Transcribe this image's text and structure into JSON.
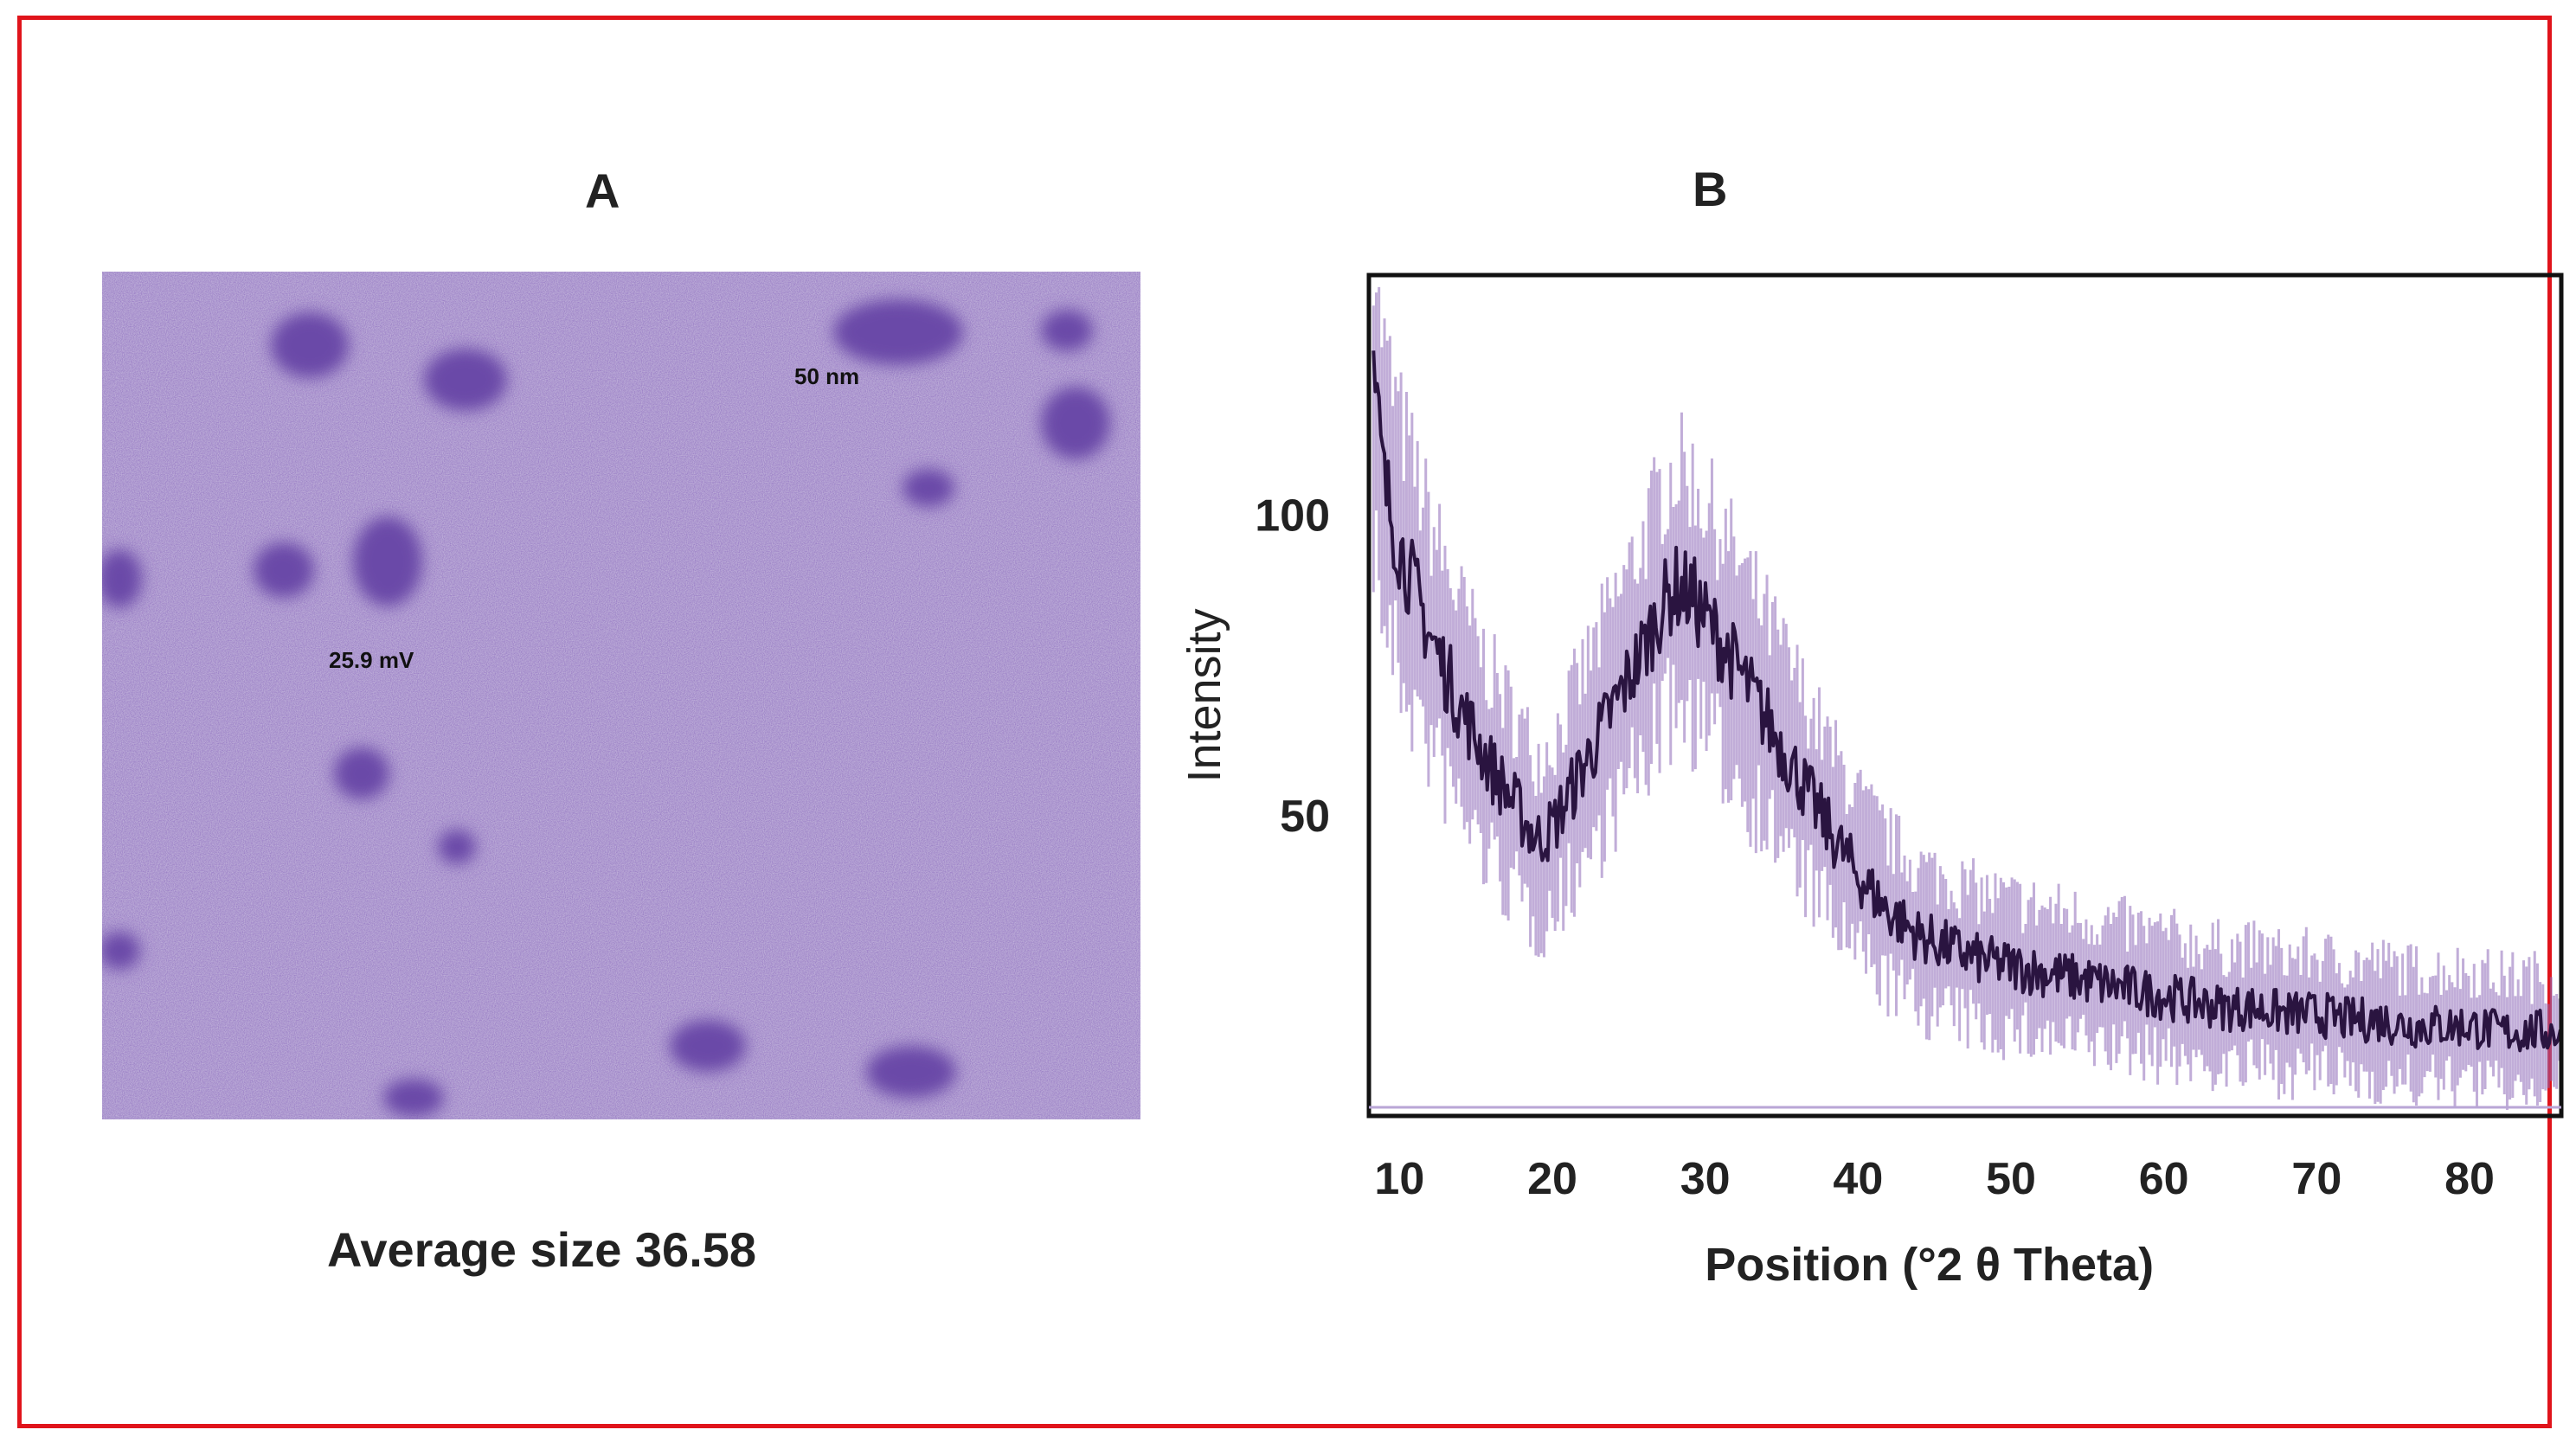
{
  "figure": {
    "border_color": "#e0141b"
  },
  "panel_a": {
    "label": "A",
    "annotation_size": "50 nm",
    "annotation_zeta": "25.9 mV",
    "caption": "Average  size 36.58",
    "background_color": "#9b7fc6",
    "particle_color": "#6a4aa8"
  },
  "panel_b": {
    "label": "B",
    "line_color": "#2a1440",
    "band_color": "#8e6ab8"
  },
  "chart_data": {
    "type": "line",
    "title": "",
    "xlabel": "Position (°2 θ Theta)",
    "ylabel": "Intensity",
    "xlim": [
      8,
      86
    ],
    "ylim": [
      0,
      140
    ],
    "xticks": [
      10,
      20,
      30,
      40,
      50,
      60,
      70,
      80
    ],
    "yticks": [
      50,
      100
    ],
    "grid": false,
    "series": [
      {
        "x": [
          8,
          9,
          10,
          12,
          14,
          16,
          18,
          19,
          20,
          22,
          24,
          26,
          27,
          28,
          29,
          30,
          32,
          34,
          36,
          38,
          40,
          42,
          44,
          46,
          48,
          50,
          52,
          54,
          56,
          58,
          60,
          62,
          64,
          66,
          68,
          70,
          72,
          74,
          76,
          78,
          80,
          82,
          84,
          86
        ],
        "values": [
          130,
          105,
          95,
          80,
          68,
          58,
          50,
          46,
          48,
          58,
          68,
          78,
          84,
          88,
          87,
          83,
          75,
          66,
          57,
          48,
          40,
          34,
          30,
          28,
          26,
          25,
          24,
          23,
          22,
          21,
          20,
          19,
          18,
          18,
          17,
          17,
          16,
          16,
          15,
          15,
          15,
          14,
          14,
          14
        ]
      }
    ]
  }
}
